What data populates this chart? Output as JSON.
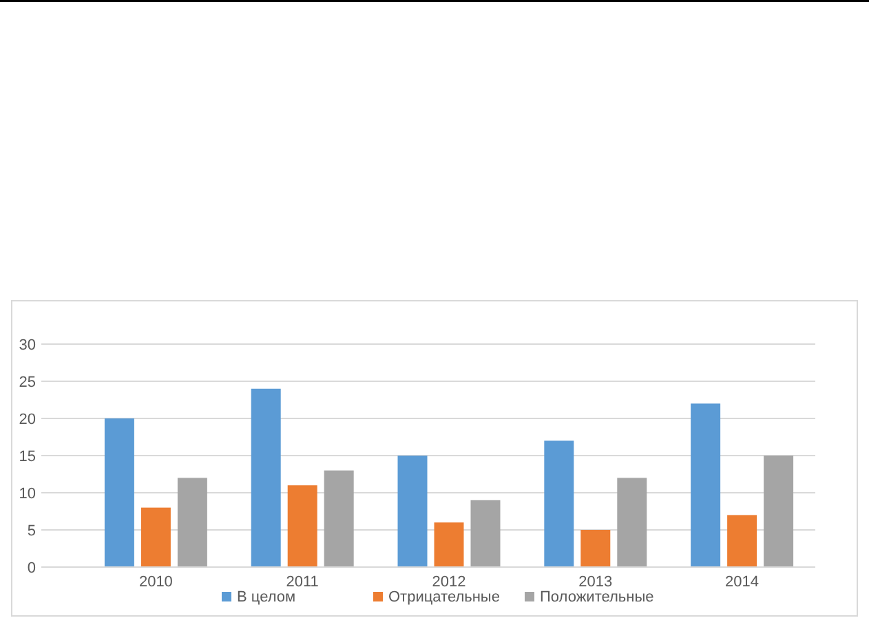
{
  "chart_data": {
    "type": "bar",
    "categories": [
      "2010",
      "2011",
      "2012",
      "2013",
      "2014"
    ],
    "series": [
      {
        "name": "В целом",
        "color": "#5b9bd5",
        "values": [
          20,
          24,
          15,
          17,
          22
        ]
      },
      {
        "name": "Отрицательные",
        "color": "#ed7d31",
        "values": [
          8,
          11,
          6,
          5,
          7
        ]
      },
      {
        "name": "Положительные",
        "color": "#a5a5a5",
        "values": [
          12,
          13,
          9,
          12,
          15
        ]
      }
    ],
    "ylim": [
      0,
      30
    ],
    "yticks": [
      0,
      5,
      10,
      15,
      20,
      25,
      30
    ],
    "grid": "y",
    "legend": "bottom"
  }
}
